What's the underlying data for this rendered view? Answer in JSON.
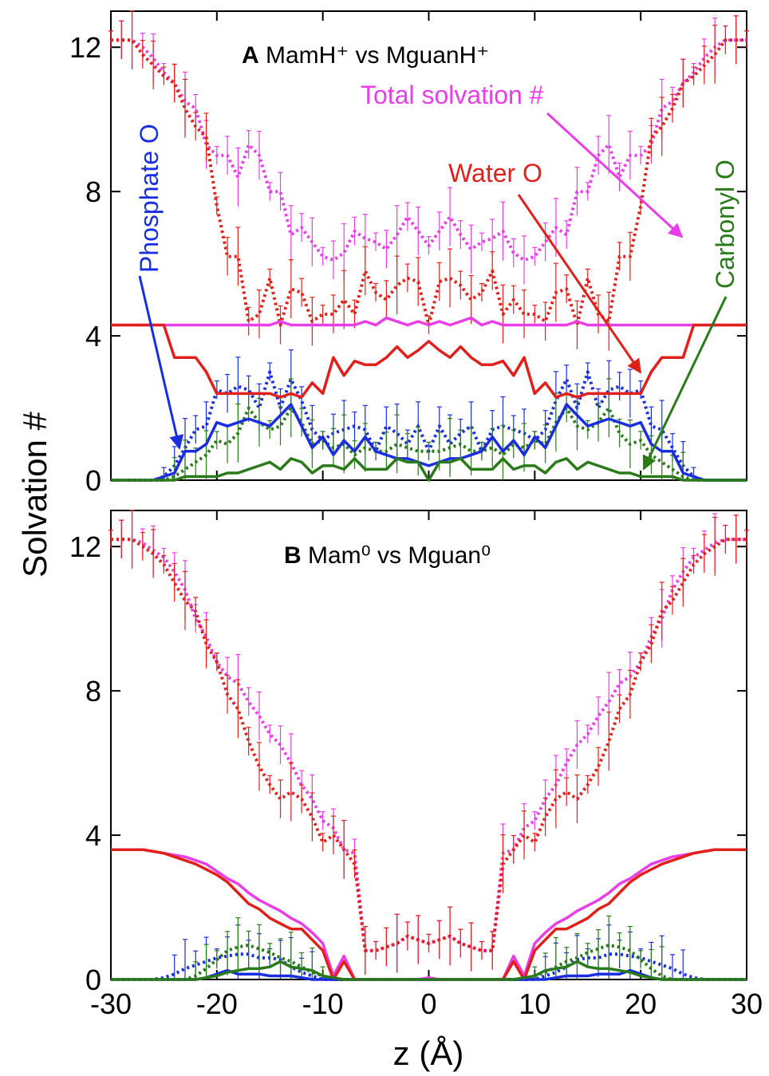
{
  "figure": {
    "ylabel": "Solvation #",
    "xlabel": "z (Å)",
    "x_ticks": [
      "-30",
      "-20",
      "-10",
      "0",
      "10",
      "20",
      "30"
    ],
    "y_ticks": [
      "0",
      "4",
      "8",
      "12"
    ]
  },
  "colors": {
    "total": "#e83ee8",
    "water": "#e0201a",
    "phosphate": "#1a2ee0",
    "carbonyl": "#2a7a1a"
  },
  "chart_data": [
    {
      "panel": "A",
      "type": "line",
      "title_bold": "A",
      "title_text": " MamH⁺ vs MguanH⁺",
      "xlim": [
        -30,
        30
      ],
      "ylim": [
        0,
        13
      ],
      "x_ticks": [
        -30,
        -20,
        -10,
        0,
        10,
        20,
        30
      ],
      "y_ticks": [
        0,
        4,
        8,
        12
      ],
      "grid": false,
      "annotations": [
        {
          "text": "Total solvation #",
          "color_key": "total"
        },
        {
          "text": "Water O",
          "color_key": "water"
        },
        {
          "text": "Phosphate O",
          "color_key": "phosphate"
        },
        {
          "text": "Carbonyl O",
          "color_key": "carbonyl"
        }
      ],
      "x": [
        0,
        1,
        2,
        3,
        4,
        5,
        6,
        7,
        8,
        9,
        10,
        11,
        12,
        13,
        14,
        15,
        16,
        17,
        18,
        19,
        20,
        21,
        22,
        23,
        24,
        25,
        26,
        27,
        28,
        29,
        30
      ],
      "series": [
        {
          "color_key": "total",
          "style": "solid",
          "symmetric": true,
          "values": [
            4.3,
            4.4,
            4.3,
            4.4,
            4.5,
            4.3,
            4.4,
            4.3,
            4.3,
            4.3,
            4.3,
            4.3,
            4.3,
            4.3,
            4.4,
            4.3,
            4.3,
            4.3,
            4.3,
            4.3,
            4.3,
            4.3,
            4.3,
            4.3,
            4.3,
            4.3,
            4.3,
            4.3,
            4.3,
            4.3,
            4.3
          ]
        },
        {
          "color_key": "water",
          "style": "solid",
          "symmetric": true,
          "values": [
            3.85,
            3.6,
            3.4,
            3.7,
            3.4,
            3.2,
            3.2,
            3.3,
            2.9,
            3.4,
            2.4,
            2.7,
            2.3,
            2.4,
            2.3,
            2.4,
            2.4,
            2.4,
            2.4,
            2.4,
            2.4,
            3.0,
            3.4,
            3.4,
            3.4,
            4.3,
            4.3,
            4.3,
            4.3,
            4.3,
            4.3
          ]
        },
        {
          "color_key": "phosphate",
          "style": "solid",
          "symmetric": true,
          "values": [
            0.4,
            0.5,
            0.6,
            0.6,
            0.7,
            0.8,
            1.2,
            0.8,
            1.1,
            0.7,
            1.2,
            0.9,
            1.5,
            2.1,
            1.8,
            1.5,
            1.6,
            1.7,
            1.6,
            1.5,
            1.6,
            1.0,
            0.8,
            0.8,
            0.2,
            0.1,
            0.0,
            0.0,
            0.0,
            0.0,
            0.0
          ]
        },
        {
          "color_key": "carbonyl",
          "style": "solid",
          "symmetric": true,
          "values": [
            0.0,
            0.5,
            0.5,
            0.6,
            0.3,
            0.3,
            0.3,
            0.6,
            0.3,
            0.4,
            0.4,
            0.2,
            0.5,
            0.6,
            0.3,
            0.5,
            0.4,
            0.3,
            0.2,
            0.2,
            0.1,
            0.1,
            0.1,
            0.1,
            0.0,
            0.0,
            0.0,
            0.0,
            0.0,
            0.0,
            0.0
          ]
        },
        {
          "color_key": "total",
          "style": "dotted",
          "symmetric": true,
          "values": [
            6.5,
            6.9,
            7.3,
            6.8,
            6.4,
            6.6,
            6.7,
            6.9,
            6.3,
            6.1,
            6.2,
            6.6,
            7.0,
            6.8,
            8.0,
            8.0,
            9.0,
            9.3,
            8.4,
            9.0,
            9.0,
            9.3,
            10.3,
            10.5,
            11.0,
            11.3,
            11.7,
            12.0,
            12.2,
            12.2,
            12.2
          ]
        },
        {
          "color_key": "water",
          "style": "dotted",
          "symmetric": true,
          "values": [
            4.3,
            5.5,
            5.6,
            5.4,
            5.0,
            5.2,
            5.8,
            4.6,
            5.0,
            4.6,
            4.6,
            4.4,
            5.2,
            5.3,
            4.3,
            5.6,
            4.6,
            4.4,
            6.2,
            6.2,
            7.6,
            9.5,
            9.8,
            10.3,
            11.0,
            11.2,
            11.5,
            11.8,
            12.2,
            12.2,
            12.2
          ]
        },
        {
          "color_key": "phosphate",
          "style": "dotted",
          "symmetric": true,
          "values": [
            0.8,
            1.5,
            1.0,
            1.3,
            1.5,
            0.8,
            1.4,
            1.5,
            1.4,
            1.3,
            1.1,
            1.4,
            2.2,
            2.8,
            2.0,
            3.0,
            2.0,
            2.5,
            2.6,
            2.4,
            2.5,
            1.5,
            1.4,
            0.9,
            0.4,
            0.1,
            0.0,
            0.0,
            0.0,
            0.0,
            0.0
          ]
        },
        {
          "color_key": "carbonyl",
          "style": "dotted",
          "symmetric": true,
          "values": [
            0.8,
            0.8,
            0.9,
            1.0,
            0.8,
            0.8,
            0.9,
            0.7,
            1.0,
            0.9,
            1.1,
            1.0,
            1.6,
            2.0,
            1.5,
            1.4,
            1.6,
            2.0,
            1.3,
            1.0,
            1.1,
            0.7,
            0.5,
            0.3,
            0.1,
            0.0,
            0.0,
            0.0,
            0.0,
            0.0,
            0.0
          ]
        }
      ]
    },
    {
      "panel": "B",
      "type": "line",
      "title_bold": "B",
      "title_text": " Mam⁰ vs Mguan⁰",
      "xlim": [
        -30,
        30
      ],
      "ylim": [
        0,
        13
      ],
      "x_ticks": [
        -30,
        -20,
        -10,
        0,
        10,
        20,
        30
      ],
      "y_ticks": [
        0,
        4,
        8,
        12
      ],
      "grid": false,
      "x": [
        0,
        1,
        2,
        3,
        4,
        5,
        6,
        7,
        8,
        9,
        10,
        11,
        12,
        13,
        14,
        15,
        16,
        17,
        18,
        19,
        20,
        21,
        22,
        23,
        24,
        25,
        26,
        27,
        28,
        29,
        30
      ],
      "series": [
        {
          "color_key": "total",
          "style": "solid",
          "symmetric": true,
          "values": [
            0.05,
            0,
            0,
            0,
            0,
            0,
            0,
            0,
            0.65,
            0.1,
            1.0,
            1.3,
            1.55,
            1.7,
            1.9,
            2.05,
            2.2,
            2.4,
            2.65,
            2.8,
            3.0,
            3.2,
            3.3,
            3.4,
            3.45,
            3.5,
            3.55,
            3.6,
            3.6,
            3.6,
            3.6
          ]
        },
        {
          "color_key": "water",
          "style": "solid",
          "symmetric": true,
          "values": [
            0,
            0,
            0,
            0,
            0,
            0,
            0,
            0,
            0.5,
            0,
            0.8,
            1.1,
            1.4,
            1.4,
            1.55,
            1.7,
            1.95,
            2.1,
            2.4,
            2.7,
            2.9,
            3.05,
            3.2,
            3.3,
            3.4,
            3.5,
            3.55,
            3.6,
            3.6,
            3.6,
            3.6
          ]
        },
        {
          "color_key": "phosphate",
          "style": "solid",
          "symmetric": true,
          "values": [
            0,
            0,
            0,
            0,
            0,
            0,
            0,
            0,
            0,
            0,
            0,
            0,
            0.05,
            0.1,
            0.1,
            0.1,
            0.15,
            0.15,
            0.15,
            0.25,
            0.15,
            0.05,
            0.0,
            0,
            0,
            0,
            0,
            0,
            0,
            0,
            0
          ]
        },
        {
          "color_key": "carbonyl",
          "style": "solid",
          "symmetric": true,
          "values": [
            0,
            0,
            0,
            0,
            0,
            0,
            0,
            0,
            0,
            0.05,
            0.1,
            0.25,
            0.3,
            0.35,
            0.5,
            0.35,
            0.3,
            0.3,
            0.25,
            0.2,
            0.1,
            0.05,
            0,
            0,
            0,
            0,
            0,
            0,
            0,
            0,
            0
          ]
        },
        {
          "color_key": "total",
          "style": "dotted",
          "symmetric": true,
          "values": [
            1.0,
            1.1,
            1.2,
            1.0,
            0.9,
            0.8,
            0.8,
            3.5,
            3.6,
            4.2,
            4.4,
            5.0,
            5.4,
            6.0,
            6.5,
            6.8,
            7.3,
            7.7,
            8.2,
            8.4,
            8.8,
            9.5,
            10.0,
            10.8,
            11.3,
            11.7,
            11.9,
            12.1,
            12.2,
            12.2,
            12.2
          ]
        },
        {
          "color_key": "water",
          "style": "dotted",
          "symmetric": true,
          "values": [
            1.0,
            1.1,
            1.2,
            1.0,
            0.9,
            0.8,
            0.8,
            3.2,
            3.6,
            4.0,
            3.8,
            4.5,
            5.0,
            5.2,
            5.0,
            5.4,
            5.9,
            6.6,
            7.5,
            7.9,
            8.8,
            9.3,
            10.2,
            10.5,
            11.0,
            11.5,
            11.8,
            12.0,
            12.2,
            12.2,
            12.2
          ]
        },
        {
          "color_key": "phosphate",
          "style": "dotted",
          "symmetric": true,
          "values": [
            0,
            0,
            0,
            0,
            0,
            0,
            0,
            0,
            0,
            0,
            0,
            0.1,
            0.2,
            0.35,
            0.55,
            0.6,
            0.6,
            0.7,
            0.7,
            0.65,
            0.6,
            0.5,
            0.4,
            0.3,
            0.15,
            0.05,
            0,
            0,
            0,
            0,
            0
          ]
        },
        {
          "color_key": "carbonyl",
          "style": "dotted",
          "symmetric": true,
          "values": [
            0,
            0,
            0,
            0,
            0,
            0,
            0,
            0,
            0,
            0,
            0.1,
            0.2,
            0.35,
            0.5,
            0.6,
            0.75,
            0.85,
            0.95,
            0.9,
            0.8,
            0.55,
            0.3,
            0.1,
            0,
            0,
            0,
            0,
            0,
            0,
            0,
            0
          ]
        }
      ]
    }
  ]
}
